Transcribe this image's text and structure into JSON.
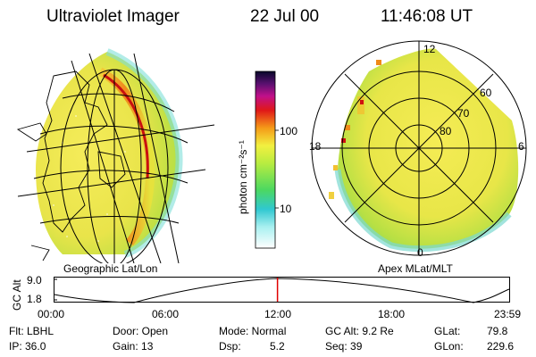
{
  "header": {
    "instrument": "Ultraviolet Imager",
    "date": "22 Jul 00",
    "time": "11:46:08 UT"
  },
  "panels": {
    "geographic_label": "Geographic Lat/Lon",
    "apex_label": "Apex MLat/MLT"
  },
  "colorbar": {
    "label": "photon cm⁻²s⁻¹",
    "ticks": [
      "100",
      "10"
    ]
  },
  "polar_plot": {
    "lat_labels": [
      "60",
      "70",
      "80"
    ],
    "mlt_labels": [
      "12",
      "18",
      "6",
      "0"
    ]
  },
  "altitude_plot": {
    "ylabel": "GC Alt",
    "ytick_top": "9.0",
    "ytick_bottom": "1.8",
    "xticks": [
      "00:00",
      "06:00",
      "12:00",
      "18:00",
      "23:59"
    ],
    "current_time_hours": 11.77
  },
  "info": {
    "filter": "Flt: LBHL",
    "ip": "IP: 36.0",
    "door": "Door: Open",
    "gain": "Gain: 13",
    "mode": "Mode: Normal",
    "dsp_label": "Dsp:",
    "dsp_value": "5.2",
    "gc_alt": "GC Alt: 9.2 Re",
    "seq": "Seq: 39",
    "glat_label": "GLat:",
    "glat_value": "79.8",
    "glon_label": "GLon:",
    "glon_value": "229.6"
  },
  "colors": {
    "time_marker": "#e00000"
  }
}
